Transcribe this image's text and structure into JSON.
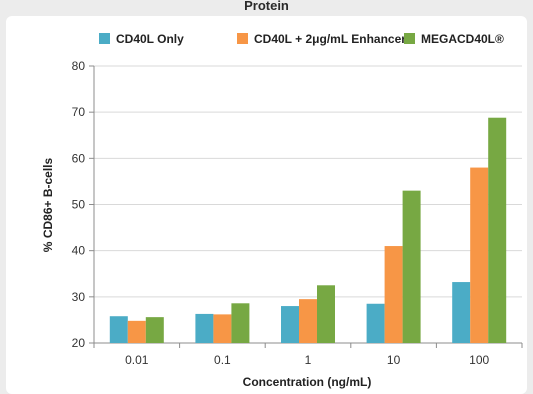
{
  "chart_data": {
    "type": "bar",
    "title": "Protein",
    "xlabel": "Concentration (ng/mL)",
    "ylabel": "% CD86+ B-cells",
    "ylim": [
      20,
      80
    ],
    "yticks": [
      "20",
      "30",
      "40",
      "50",
      "60",
      "70",
      "80"
    ],
    "categories": [
      "0.01",
      "0.1",
      "1",
      "10",
      "100"
    ],
    "series": [
      {
        "name": "CD40L Only",
        "color": "#4bacc6",
        "values": [
          25.8,
          26.3,
          28.0,
          28.5,
          33.2
        ]
      },
      {
        "name": "CD40L + 2μg/mL Enhancer",
        "color": "#f79646",
        "values": [
          24.8,
          26.2,
          29.5,
          41.0,
          58.0
        ]
      },
      {
        "name": "MEGACD40L®",
        "color": "#77a843",
        "values": [
          25.6,
          28.6,
          32.5,
          53.0,
          68.8
        ]
      }
    ],
    "grid": true,
    "legend_position": "top"
  }
}
